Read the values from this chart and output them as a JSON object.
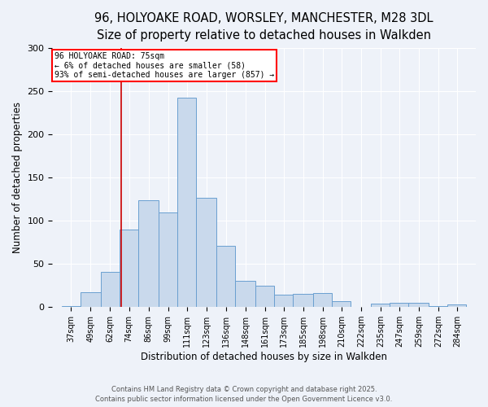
{
  "title1": "96, HOLYOAKE ROAD, WORSLEY, MANCHESTER, M28 3DL",
  "title2": "Size of property relative to detached houses in Walkden",
  "xlabel": "Distribution of detached houses by size in Walkden",
  "ylabel": "Number of detached properties",
  "bin_labels": [
    "37sqm",
    "49sqm",
    "62sqm",
    "74sqm",
    "86sqm",
    "99sqm",
    "111sqm",
    "123sqm",
    "136sqm",
    "148sqm",
    "161sqm",
    "173sqm",
    "185sqm",
    "198sqm",
    "210sqm",
    "222sqm",
    "235sqm",
    "247sqm",
    "259sqm",
    "272sqm",
    "284sqm"
  ],
  "bin_lefts": [
    37,
    49,
    62,
    74,
    86,
    99,
    111,
    123,
    136,
    148,
    161,
    173,
    185,
    198,
    210,
    222,
    235,
    247,
    259,
    272,
    284
  ],
  "values": [
    1,
    17,
    41,
    90,
    124,
    110,
    243,
    127,
    71,
    30,
    25,
    14,
    15,
    16,
    7,
    0,
    4,
    5,
    5,
    1,
    3
  ],
  "bar_color": "#c9d9ec",
  "bar_edge_color": "#6a9fd0",
  "red_line_x": 75,
  "annotation_line0": "96 HOLYOAKE ROAD: 75sqm",
  "annotation_line1": "← 6% of detached houses are smaller (58)",
  "annotation_line2": "93% of semi-detached houses are larger (857) →",
  "annotation_box_color": "white",
  "annotation_border_color": "red",
  "red_line_color": "#cc0000",
  "ylim": [
    0,
    300
  ],
  "yticks": [
    0,
    50,
    100,
    150,
    200,
    250,
    300
  ],
  "footer1": "Contains HM Land Registry data © Crown copyright and database right 2025.",
  "footer2": "Contains public sector information licensed under the Open Government Licence v3.0.",
  "bg_color": "#eef2f9",
  "grid_color": "#ffffff",
  "title_fontsize": 10.5,
  "subtitle_fontsize": 9.5,
  "axis_label_fontsize": 8.5,
  "tick_fontsize": 7,
  "footer_fontsize": 6
}
